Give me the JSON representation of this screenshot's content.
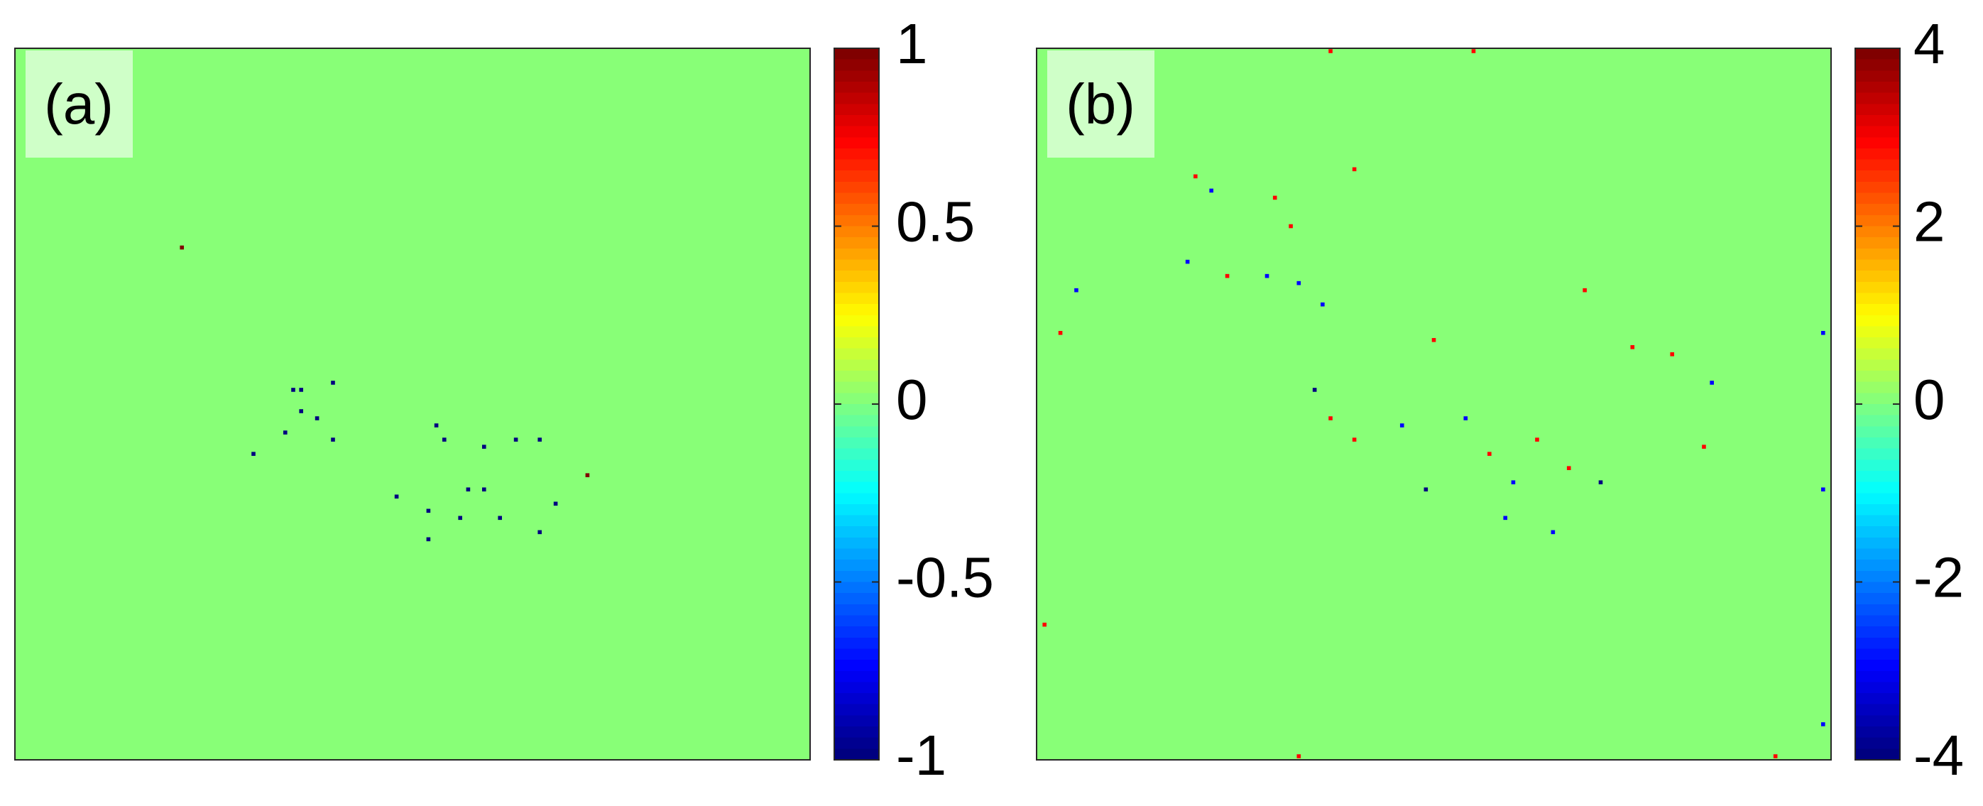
{
  "chart_data": [
    {
      "type": "heatmap",
      "title": "(a)",
      "colormap": "jet",
      "xlim": [
        0,
        100
      ],
      "ylim": [
        100,
        0
      ],
      "clim": [
        -1,
        1
      ],
      "cticks": [
        -1,
        -0.5,
        0,
        0.5,
        1
      ],
      "x": [
        21,
        35,
        36,
        40,
        36,
        38,
        34,
        40,
        30,
        53,
        54,
        59,
        63,
        66,
        57,
        59,
        48,
        52,
        56,
        61,
        66,
        52,
        68,
        72
      ],
      "y": [
        28,
        48,
        48,
        47,
        51,
        52,
        54,
        55,
        57,
        53,
        55,
        56,
        55,
        55,
        62,
        62,
        63,
        65,
        66,
        66,
        68,
        69,
        64,
        60
      ],
      "values": [
        1,
        -1,
        -1,
        -1,
        -1,
        -1,
        -1,
        -1,
        -1,
        -1,
        -1,
        -1,
        -1,
        -1,
        -1,
        -1,
        -1,
        -1,
        -1,
        -1,
        -1,
        -1,
        -1,
        1
      ]
    },
    {
      "type": "heatmap",
      "title": "(b)",
      "colormap": "jet",
      "xlim": [
        0,
        100
      ],
      "ylim": [
        100,
        0
      ],
      "clim": [
        -4,
        4
      ],
      "cticks": [
        -4,
        -2,
        0,
        2,
        4
      ],
      "x": [
        37,
        55,
        20,
        22,
        30,
        32,
        19,
        24,
        29,
        33,
        40,
        36,
        5,
        3,
        50,
        75,
        80,
        85,
        35,
        37,
        40,
        46,
        54,
        57,
        60,
        63,
        67,
        49,
        59,
        65,
        71,
        84,
        99,
        93,
        33,
        99,
        1,
        99,
        69
      ],
      "y": [
        0.4,
        0.4,
        18,
        20,
        21,
        25,
        30,
        32,
        32,
        33,
        17,
        36,
        34,
        40,
        41,
        42,
        43,
        47,
        48,
        52,
        55,
        53,
        52,
        57,
        61,
        55,
        59,
        62,
        66,
        68,
        61,
        56,
        62,
        99.5,
        99.5,
        95,
        81,
        40,
        34
      ],
      "values": [
        3,
        3,
        3,
        -3,
        3,
        3,
        -3,
        3,
        -3,
        -3,
        3,
        -3,
        -3,
        3,
        3,
        3,
        3,
        -3,
        -4,
        3,
        3,
        -3,
        -3,
        3,
        -3,
        3,
        3,
        -4,
        -3,
        -3,
        -4,
        3,
        -3,
        3,
        3,
        -3,
        3,
        -3,
        3
      ]
    }
  ]
}
